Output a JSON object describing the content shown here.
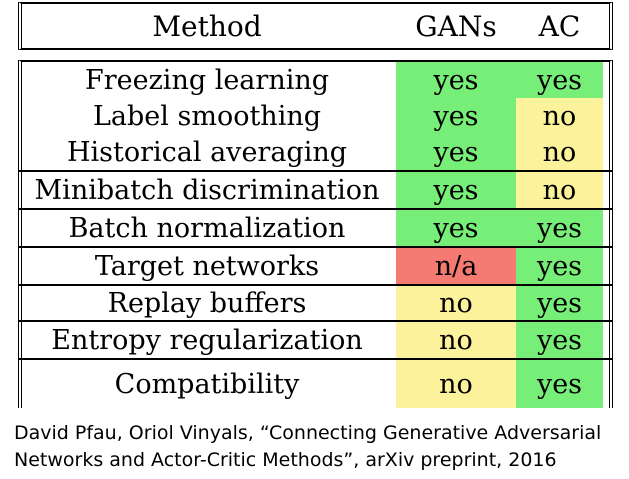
{
  "table": {
    "headers": {
      "method": "Method",
      "gans": "GANs",
      "ac": "AC"
    },
    "rows": [
      {
        "method": "Freezing learning",
        "gans": "yes",
        "ac": "yes"
      },
      {
        "method": "Label smoothing",
        "gans": "yes",
        "ac": "no"
      },
      {
        "method": "Historical averaging",
        "gans": "yes",
        "ac": "no"
      },
      {
        "method": "Minibatch discrimination",
        "gans": "yes",
        "ac": "no"
      },
      {
        "method": "Batch normalization",
        "gans": "yes",
        "ac": "yes"
      },
      {
        "method": "Target networks",
        "gans": "n/a",
        "ac": "yes"
      },
      {
        "method": "Replay buffers",
        "gans": "no",
        "ac": "yes"
      },
      {
        "method": "Entropy regularization",
        "gans": "no",
        "ac": "yes"
      },
      {
        "method": "Compatibility",
        "gans": "no",
        "ac": "yes"
      }
    ],
    "colors": {
      "yes": "#77ee77",
      "no": "#fcf29c",
      "n/a": "#f47a72"
    }
  },
  "citation": {
    "line1": "David Pfau, Oriol Vinyals, “Connecting Generative Adversarial",
    "line2": "Networks and Actor-Critic Methods”, arXiv preprint, 2016"
  }
}
